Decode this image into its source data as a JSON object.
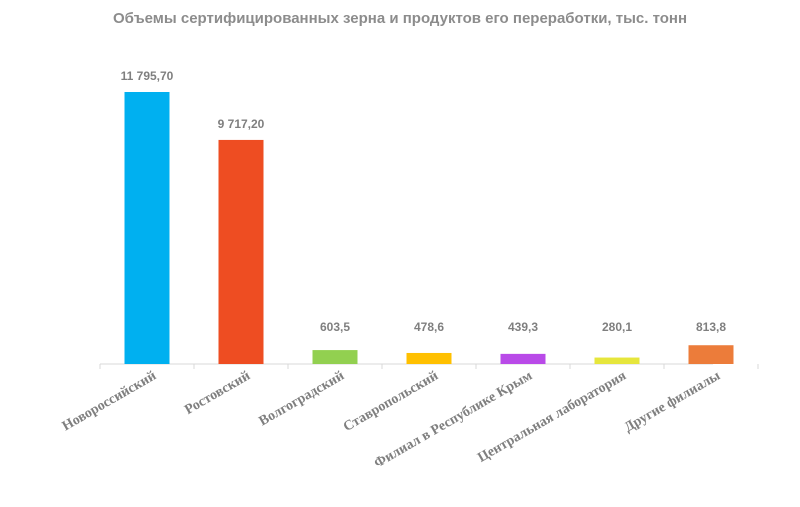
{
  "chart_data": {
    "type": "bar",
    "title": "Объемы сертифицированных зерна и продуктов его переработки, тыс. тонн",
    "categories": [
      "Новороссийский",
      "Ростовский",
      "Волгоградский",
      "Ставропольский",
      "Филиал в Республике Крым",
      "Центральная лаборатория",
      "Другие филиалы"
    ],
    "values": [
      11795.7,
      9717.2,
      603.5,
      478.6,
      439.3,
      280.1,
      813.8
    ],
    "data_labels": [
      "11 795,70",
      "9 717,20",
      "603,5",
      "478,6",
      "439,3",
      "280,1",
      "813,8"
    ],
    "colors": [
      "#00b0f0",
      "#ee4d22",
      "#92d050",
      "#ffc000",
      "#b94ae8",
      "#e6e63c",
      "#ec7c3a"
    ],
    "ylim": [
      0,
      11795.7
    ],
    "xlabel": "",
    "ylabel": "",
    "grid": false,
    "legend": "none"
  }
}
